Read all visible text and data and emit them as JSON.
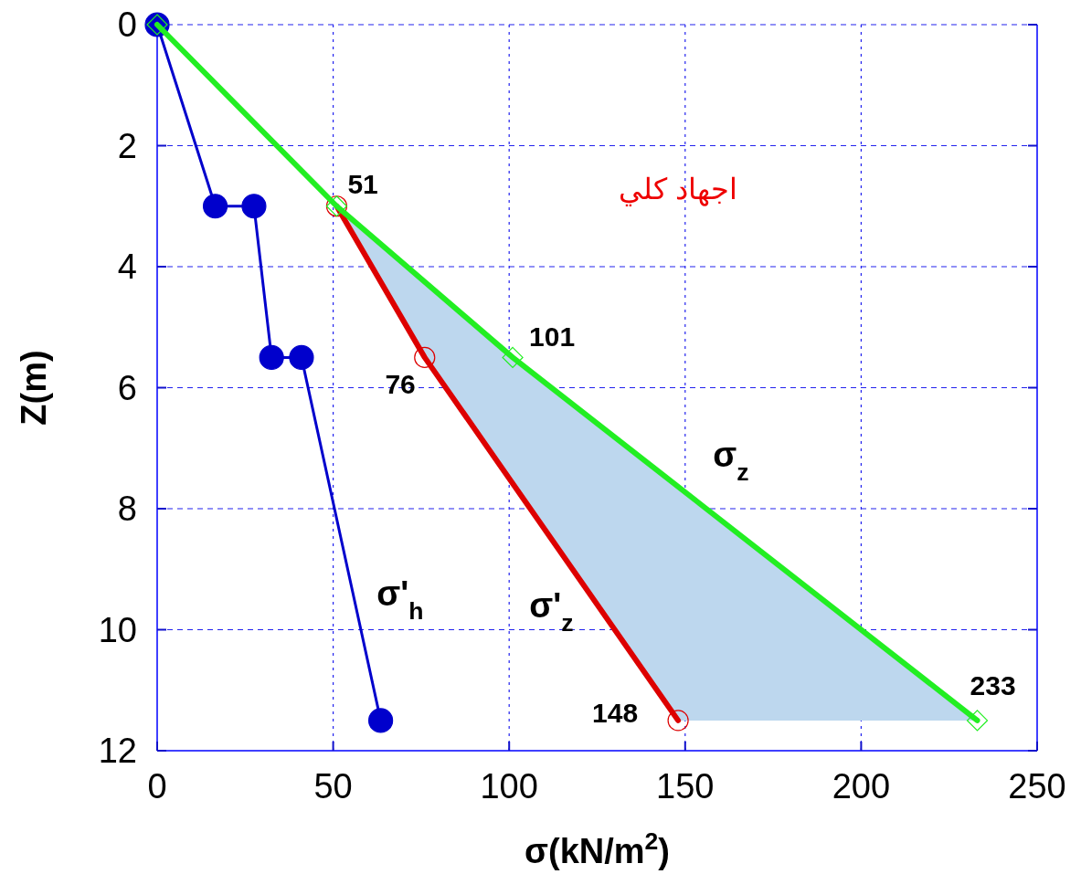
{
  "chart_data": {
    "type": "line",
    "xlabel": "σ(kN/m$^{2}$)",
    "ylabel": "Z(m)",
    "xlim": [
      0,
      250
    ],
    "ylim": [
      12,
      0
    ],
    "xticks": [
      0,
      50,
      100,
      150,
      200,
      250
    ],
    "yticks": [
      0,
      2,
      4,
      6,
      8,
      10,
      12
    ],
    "grid": true,
    "line_style": "solid",
    "series": [
      {
        "type": "area",
        "color": "#bdd7ee",
        "x": [
          51,
          101,
          233,
          148,
          76,
          51
        ],
        "values": [
          3,
          5.5,
          11.5,
          11.5,
          5.5,
          3
        ]
      },
      {
        "name": "σ'$_{h}$",
        "color": "#0000cc",
        "marker": "circle",
        "x": [
          0,
          16.5,
          27.5,
          32.5,
          41,
          63.5
        ],
        "values": [
          0,
          3,
          3,
          5.5,
          5.5,
          11.5
        ]
      },
      {
        "name": "σ'$_{z}$",
        "color": "#dd0000",
        "marker": "circle",
        "x": [
          51,
          76,
          148
        ],
        "values": [
          3,
          5.5,
          11.5
        ]
      },
      {
        "name": "σ$_{z}$",
        "color": "#22ee22",
        "marker": "diamond",
        "x": [
          0,
          51,
          101,
          233
        ],
        "values": [
          0,
          3,
          5.5,
          11.5
        ]
      }
    ],
    "annotations": [
      {
        "text": "51",
        "x": 51,
        "y": 3
      },
      {
        "text": "101",
        "x": 101,
        "y": 5.5
      },
      {
        "text": "76",
        "x": 76,
        "y": 5.5
      },
      {
        "text": "148",
        "x": 148,
        "y": 11.5
      },
      {
        "text": "233",
        "x": 233,
        "y": 11.5
      },
      "اجهاد كلي"
    ]
  }
}
